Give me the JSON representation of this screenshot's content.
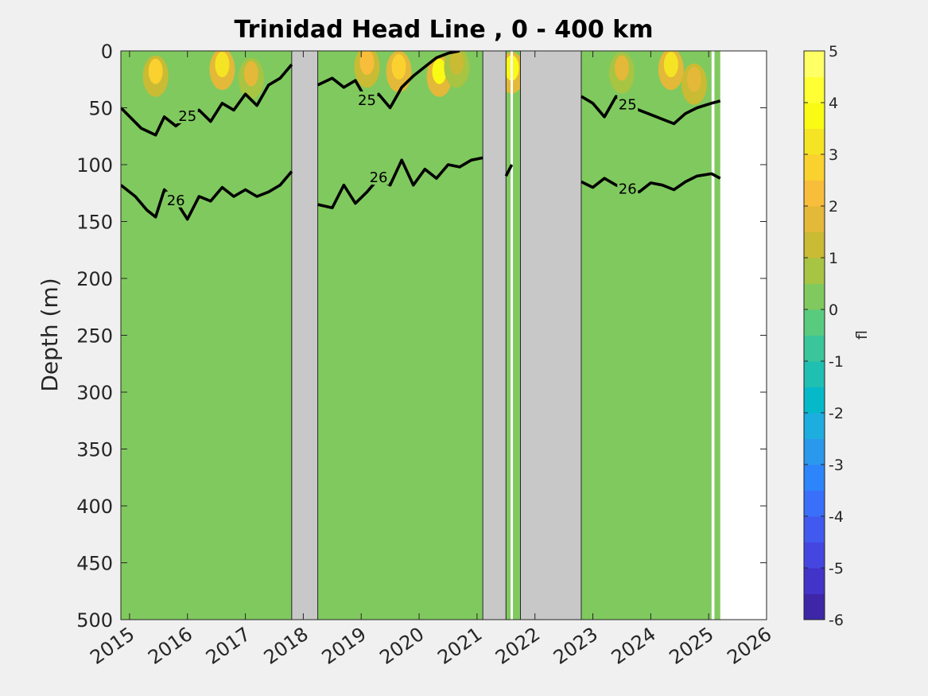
{
  "chart_data": {
    "type": "heatmap",
    "title": "Trinidad Head Line , 0 - 400 km",
    "ylabel": "Depth (m)",
    "xlabel": "",
    "xlim": [
      2014.85,
      2026.0
    ],
    "ylim": [
      0,
      500
    ],
    "y_reversed": true,
    "x_ticks": [
      "2015",
      "2016",
      "2017",
      "2018",
      "2019",
      "2020",
      "2021",
      "2022",
      "2023",
      "2024",
      "2025",
      "2026"
    ],
    "x_tick_values": [
      2015,
      2016,
      2017,
      2018,
      2019,
      2020,
      2021,
      2022,
      2023,
      2024,
      2025,
      2026
    ],
    "y_ticks": [
      "0",
      "50",
      "100",
      "150",
      "200",
      "250",
      "300",
      "350",
      "400",
      "450",
      "500"
    ],
    "y_tick_values": [
      0,
      50,
      100,
      150,
      200,
      250,
      300,
      350,
      400,
      450,
      500
    ],
    "background_value": 0.2,
    "colorbar": {
      "label": "fl",
      "min": -6,
      "max": 5,
      "ticks": [
        "5",
        "4",
        "3",
        "2",
        "1",
        "0",
        "-1",
        "-2",
        "-3",
        "-4",
        "-5",
        "-6"
      ],
      "tick_values": [
        5,
        4,
        3,
        2,
        1,
        0,
        -1,
        -2,
        -3,
        -4,
        -5,
        -6
      ],
      "colors": [
        "#3e26a8",
        "#4233c9",
        "#4546e0",
        "#4259ef",
        "#3a6ffa",
        "#2d84fb",
        "#2a98ed",
        "#1dadde",
        "#06b9c9",
        "#1fbfb2",
        "#3ac69a",
        "#59cb7f",
        "#80c95f",
        "#a7c443",
        "#c9bb33",
        "#e4b838",
        "#f8bd3b",
        "#fad12f",
        "#f5e424",
        "#f9fb15",
        "#ffff33",
        "#ffff66"
      ]
    },
    "no_data_gaps": [
      [
        2017.8,
        2018.25
      ],
      [
        2021.1,
        2021.5
      ],
      [
        2021.75,
        2022.8
      ]
    ],
    "white_gaps": [
      [
        2021.58,
        2021.62
      ],
      [
        2025.05,
        2025.1
      ],
      [
        2025.2,
        2026.0
      ]
    ],
    "surface_hotspots": [
      {
        "x": 2015.45,
        "y": 18,
        "value": 2.5
      },
      {
        "x": 2016.6,
        "y": 12,
        "value": 3.2
      },
      {
        "x": 2017.1,
        "y": 20,
        "value": 1.8
      },
      {
        "x": 2019.1,
        "y": 10,
        "value": 2.0
      },
      {
        "x": 2019.65,
        "y": 14,
        "value": 2.8
      },
      {
        "x": 2020.35,
        "y": 18,
        "value": 3.5
      },
      {
        "x": 2020.65,
        "y": 10,
        "value": 1.5
      },
      {
        "x": 2021.6,
        "y": 15,
        "value": 3.6
      },
      {
        "x": 2023.5,
        "y": 15,
        "value": 1.6
      },
      {
        "x": 2024.35,
        "y": 12,
        "value": 3.4
      },
      {
        "x": 2024.75,
        "y": 25,
        "value": 1.9
      }
    ],
    "isopycnals": [
      {
        "name": "25",
        "bold": true,
        "segments": [
          [
            [
              2014.85,
              50
            ],
            [
              2015.2,
              68
            ],
            [
              2015.45,
              74
            ],
            [
              2015.6,
              58
            ],
            [
              2015.8,
              66
            ],
            [
              2016.0,
              58
            ],
            [
              2016.2,
              52
            ],
            [
              2016.4,
              62
            ],
            [
              2016.6,
              46
            ],
            [
              2016.8,
              52
            ],
            [
              2017.0,
              38
            ],
            [
              2017.2,
              48
            ],
            [
              2017.4,
              30
            ],
            [
              2017.6,
              24
            ],
            [
              2017.8,
              12
            ]
          ],
          [
            [
              2018.25,
              30
            ],
            [
              2018.5,
              24
            ],
            [
              2018.7,
              32
            ],
            [
              2018.9,
              26
            ],
            [
              2019.1,
              44
            ],
            [
              2019.3,
              38
            ],
            [
              2019.5,
              50
            ],
            [
              2019.7,
              32
            ],
            [
              2019.9,
              22
            ],
            [
              2020.1,
              14
            ],
            [
              2020.3,
              6
            ],
            [
              2020.5,
              2
            ],
            [
              2020.7,
              0
            ]
          ],
          [
            [
              2022.8,
              40
            ],
            [
              2023.0,
              46
            ],
            [
              2023.2,
              58
            ],
            [
              2023.4,
              40
            ],
            [
              2023.6,
              48
            ],
            [
              2023.8,
              52
            ],
            [
              2024.0,
              56
            ],
            [
              2024.2,
              60
            ],
            [
              2024.4,
              64
            ],
            [
              2024.6,
              55
            ],
            [
              2024.8,
              50
            ],
            [
              2025.05,
              46
            ],
            [
              2025.2,
              44
            ]
          ]
        ]
      },
      {
        "name": "26",
        "bold": true,
        "segments": [
          [
            [
              2014.85,
              118
            ],
            [
              2015.1,
              128
            ],
            [
              2015.3,
              140
            ],
            [
              2015.45,
              146
            ],
            [
              2015.6,
              122
            ],
            [
              2015.8,
              132
            ],
            [
              2016.0,
              148
            ],
            [
              2016.2,
              128
            ],
            [
              2016.4,
              132
            ],
            [
              2016.6,
              120
            ],
            [
              2016.8,
              128
            ],
            [
              2017.0,
              122
            ],
            [
              2017.2,
              128
            ],
            [
              2017.4,
              124
            ],
            [
              2017.6,
              118
            ],
            [
              2017.8,
              106
            ]
          ],
          [
            [
              2018.25,
              135
            ],
            [
              2018.5,
              138
            ],
            [
              2018.7,
              118
            ],
            [
              2018.9,
              134
            ],
            [
              2019.1,
              124
            ],
            [
              2019.3,
              112
            ],
            [
              2019.5,
              118
            ],
            [
              2019.7,
              96
            ],
            [
              2019.9,
              118
            ],
            [
              2020.1,
              104
            ],
            [
              2020.3,
              112
            ],
            [
              2020.5,
              100
            ],
            [
              2020.7,
              102
            ],
            [
              2020.9,
              96
            ],
            [
              2021.1,
              94
            ]
          ],
          [
            [
              2021.5,
              110
            ],
            [
              2021.6,
              100
            ]
          ],
          [
            [
              2022.8,
              115
            ],
            [
              2023.0,
              120
            ],
            [
              2023.2,
              112
            ],
            [
              2023.4,
              118
            ],
            [
              2023.6,
              122
            ],
            [
              2023.8,
              124
            ],
            [
              2024.0,
              116
            ],
            [
              2024.2,
              118
            ],
            [
              2024.4,
              122
            ],
            [
              2024.6,
              115
            ],
            [
              2024.8,
              110
            ],
            [
              2025.05,
              108
            ],
            [
              2025.2,
              112
            ]
          ]
        ]
      }
    ]
  }
}
